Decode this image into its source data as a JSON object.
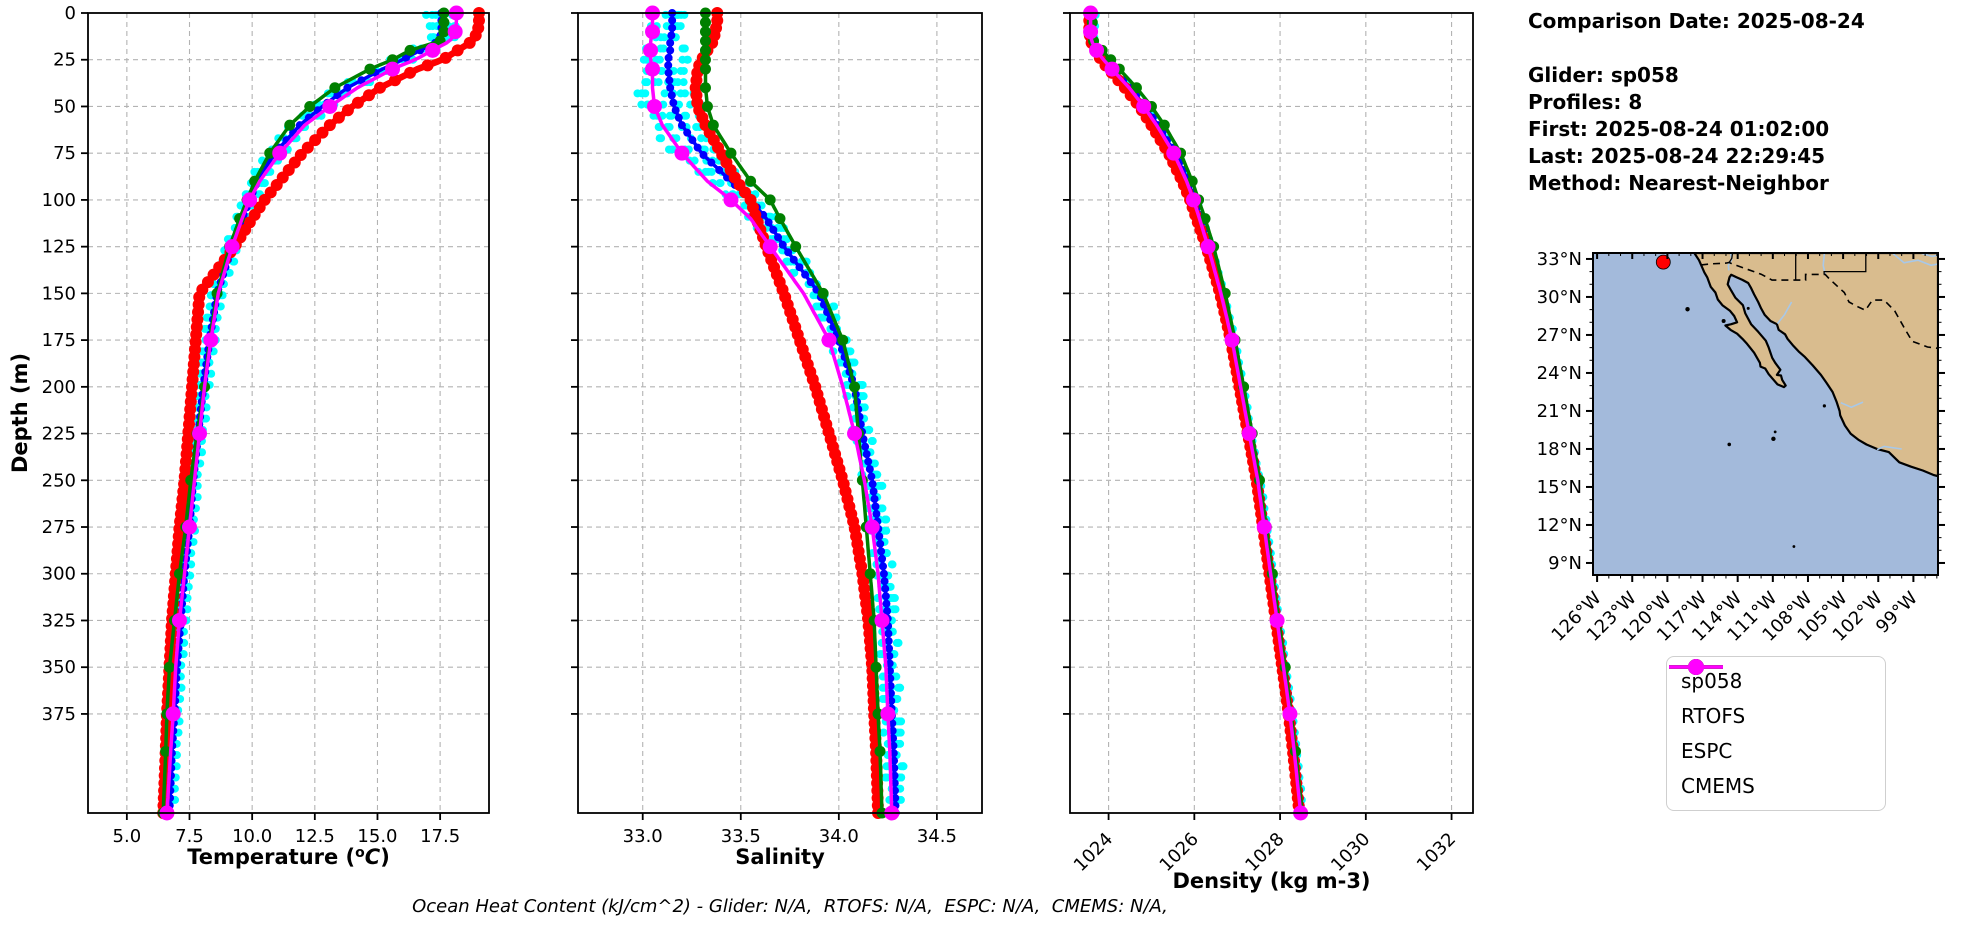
{
  "info_panel": {
    "comparison_date": "Comparison Date: 2025-08-24",
    "lines": [
      "Glider: sp058",
      "Profiles: 8",
      "First: 2025-08-24 01:02:00",
      "Last: 2025-08-24 22:29:45",
      "Method: Nearest-Neighbor"
    ]
  },
  "caption": "Ocean Heat Content (kJ/cm^2) - Glider: N/A,  RTOFS: N/A,  ESPC: N/A,  CMEMS: N/A,",
  "legend": {
    "items": [
      {
        "label": "sp058",
        "color": "#0000ff"
      },
      {
        "label": "RTOFS",
        "color": "#ff0000"
      },
      {
        "label": "ESPC",
        "color": "#008000"
      },
      {
        "label": "CMEMS",
        "color": "#ff00ff"
      }
    ]
  },
  "map": {
    "ocean_color": "#a3badb",
    "land_color": "#d9bc8e",
    "coast_color": "#000000",
    "river_color": "#a8c8e8",
    "lat_ticks": [
      33,
      30,
      27,
      24,
      21,
      18,
      15,
      12,
      9
    ],
    "lat_tick_labels": [
      "33°N",
      "30°N",
      "27°N",
      "24°N",
      "21°N",
      "18°N",
      "15°N",
      "12°N",
      "9°N"
    ],
    "lon_ticks": [
      -126,
      -123,
      -120,
      -117,
      -114,
      -111,
      -108,
      -105,
      -102,
      -99
    ],
    "lon_tick_labels": [
      "126°W",
      "123°W",
      "120°W",
      "117°W",
      "114°W",
      "111°W",
      "108°W",
      "105°W",
      "102°W",
      "99°W"
    ],
    "glider_marker": {
      "color": "#ff0000",
      "lon": -120.35,
      "lat": 32.75
    }
  },
  "glider_scatter": {
    "name": "sp058 raw profiles",
    "color": "#00ffff",
    "profiles": 8,
    "jitter": {
      "temperature": 0.45,
      "salinity": 0.09,
      "density": 0.05
    }
  },
  "chart_data": [
    {
      "id": "temperature",
      "type": "line",
      "xlabel": {
        "prefix": "Temperature (",
        "superscript": "o",
        "italic": "C",
        "suffix": ")"
      },
      "ylabel": "Depth (m)",
      "xlim": [
        3.45,
        19.45
      ],
      "ylim": [
        0,
        428
      ],
      "xticks": [
        5.0,
        7.5,
        10.0,
        12.5,
        15.0,
        17.5
      ],
      "xtick_labels": [
        "5.0",
        "7.5",
        "10.0",
        "12.5",
        "15.0",
        "17.5"
      ],
      "yticks": [
        0,
        25,
        50,
        75,
        100,
        125,
        150,
        175,
        200,
        225,
        250,
        275,
        300,
        325,
        350,
        375
      ],
      "depths": [
        0,
        5,
        10,
        15,
        20,
        25,
        30,
        40,
        50,
        60,
        75,
        90,
        100,
        110,
        125,
        150,
        175,
        200,
        225,
        250,
        275,
        300,
        325,
        350,
        375,
        395,
        428
      ],
      "series": [
        {
          "name": "sp058",
          "color": "#0000ff",
          "values": [
            17.55,
            17.55,
            17.55,
            17.45,
            16.7,
            16.0,
            15.2,
            13.8,
            12.8,
            11.9,
            10.9,
            10.2,
            9.9,
            9.6,
            9.2,
            8.6,
            8.3,
            8.05,
            7.85,
            7.65,
            7.5,
            7.3,
            7.15,
            7.0,
            6.9,
            6.8,
            6.7
          ]
        },
        {
          "name": "RTOFS",
          "color": "#ff0000",
          "values": [
            19.05,
            19.05,
            19.0,
            18.8,
            18.2,
            17.6,
            16.6,
            15.1,
            14.0,
            13.1,
            12.0,
            11.1,
            10.5,
            10.0,
            9.3,
            7.9,
            7.75,
            7.6,
            7.45,
            7.3,
            7.1,
            6.95,
            6.8,
            6.7,
            6.6,
            6.55,
            6.45
          ]
        },
        {
          "name": "ESPC",
          "color": "#008000",
          "values": [
            17.65,
            17.65,
            17.65,
            17.5,
            16.3,
            15.6,
            14.7,
            13.3,
            12.3,
            11.5,
            10.7,
            10.1,
            9.8,
            9.5,
            9.1,
            8.6,
            8.3,
            8.1,
            7.8,
            7.55,
            7.35,
            7.1,
            6.9,
            6.7,
            6.6,
            6.55,
            6.45
          ]
        },
        {
          "name": "CMEMS",
          "color": "#ff00ff",
          "values": [
            18.15,
            18.15,
            18.1,
            17.9,
            17.2,
            16.5,
            15.6,
            14.2,
            13.1,
            12.1,
            11.1,
            10.3,
            9.9,
            9.6,
            9.2,
            8.65,
            8.35,
            8.1,
            7.9,
            7.7,
            7.5,
            7.3,
            7.1,
            6.95,
            6.85,
            6.75,
            6.6
          ]
        }
      ]
    },
    {
      "id": "salinity",
      "type": "line",
      "xlabel": {
        "prefix": "Salinity"
      },
      "xlim": [
        32.67,
        34.73
      ],
      "ylim": [
        0,
        428
      ],
      "xticks": [
        33.0,
        33.5,
        34.0,
        34.5
      ],
      "xtick_labels": [
        "33.0",
        "33.5",
        "34.0",
        "34.5"
      ],
      "yticks": [
        0,
        25,
        50,
        75,
        100,
        125,
        150,
        175,
        200,
        225,
        250,
        275,
        300,
        325,
        350,
        375
      ],
      "depths": [
        0,
        5,
        10,
        15,
        20,
        25,
        30,
        40,
        50,
        60,
        75,
        90,
        100,
        110,
        125,
        150,
        175,
        200,
        225,
        250,
        275,
        300,
        325,
        350,
        375,
        395,
        428
      ],
      "series": [
        {
          "name": "sp058",
          "color": "#0000ff",
          "values": [
            33.15,
            33.15,
            33.15,
            33.14,
            33.14,
            33.13,
            33.13,
            33.14,
            33.16,
            33.2,
            33.3,
            33.45,
            33.55,
            33.63,
            33.72,
            33.9,
            34.0,
            34.08,
            34.12,
            34.17,
            34.2,
            34.23,
            34.25,
            34.26,
            34.27,
            34.28,
            34.29
          ]
        },
        {
          "name": "RTOFS",
          "color": "#ff0000",
          "values": [
            33.38,
            33.38,
            33.37,
            33.36,
            33.33,
            33.3,
            33.28,
            33.27,
            33.28,
            33.32,
            33.4,
            33.48,
            33.55,
            33.58,
            33.63,
            33.72,
            33.8,
            33.88,
            33.95,
            34.02,
            34.08,
            34.12,
            34.15,
            34.17,
            34.18,
            34.19,
            34.2
          ]
        },
        {
          "name": "ESPC",
          "color": "#008000",
          "values": [
            33.32,
            33.32,
            33.32,
            33.32,
            33.32,
            33.32,
            33.32,
            33.32,
            33.33,
            33.36,
            33.45,
            33.55,
            33.65,
            33.7,
            33.78,
            33.92,
            34.02,
            34.08,
            34.1,
            34.12,
            34.14,
            34.16,
            34.18,
            34.19,
            34.2,
            34.21,
            34.22
          ]
        },
        {
          "name": "CMEMS",
          "color": "#ff00ff",
          "values": [
            33.05,
            33.05,
            33.05,
            33.04,
            33.04,
            33.04,
            33.05,
            33.05,
            33.06,
            33.1,
            33.2,
            33.33,
            33.45,
            33.55,
            33.65,
            33.82,
            33.95,
            34.02,
            34.08,
            34.13,
            34.17,
            34.2,
            34.22,
            34.24,
            34.25,
            34.26,
            34.27
          ]
        }
      ]
    },
    {
      "id": "density",
      "type": "line",
      "xlabel": {
        "prefix": "Density (kg m-3)"
      },
      "xlim": [
        1023.1,
        1032.5
      ],
      "ylim": [
        0,
        428
      ],
      "xticks": [
        1024,
        1026,
        1028,
        1030,
        1032
      ],
      "xtick_labels": [
        "1024",
        "1026",
        "1028",
        "1030",
        "1032"
      ],
      "xtick_rotation": -45,
      "yticks": [
        0,
        25,
        50,
        75,
        100,
        125,
        150,
        175,
        200,
        225,
        250,
        275,
        300,
        325,
        350,
        375
      ],
      "depths": [
        0,
        5,
        10,
        15,
        20,
        25,
        30,
        40,
        50,
        60,
        75,
        90,
        100,
        110,
        125,
        150,
        175,
        200,
        225,
        250,
        275,
        300,
        325,
        350,
        375,
        395,
        428
      ],
      "series": [
        {
          "name": "sp058",
          "color": "#0000ff",
          "values": [
            1023.6,
            1023.6,
            1023.6,
            1023.62,
            1023.75,
            1023.9,
            1024.1,
            1024.5,
            1024.85,
            1025.15,
            1025.55,
            1025.85,
            1026.0,
            1026.15,
            1026.35,
            1026.65,
            1026.9,
            1027.1,
            1027.3,
            1027.5,
            1027.65,
            1027.8,
            1027.95,
            1028.1,
            1028.25,
            1028.35,
            1028.5
          ]
        },
        {
          "name": "RTOFS",
          "color": "#ff0000",
          "values": [
            1023.55,
            1023.55,
            1023.55,
            1023.58,
            1023.7,
            1023.82,
            1024.0,
            1024.38,
            1024.72,
            1025.0,
            1025.4,
            1025.72,
            1025.9,
            1026.05,
            1026.28,
            1026.6,
            1026.85,
            1027.05,
            1027.25,
            1027.45,
            1027.6,
            1027.75,
            1027.9,
            1028.05,
            1028.2,
            1028.3,
            1028.45
          ]
        },
        {
          "name": "ESPC",
          "color": "#008000",
          "values": [
            1023.62,
            1023.62,
            1023.62,
            1023.65,
            1023.85,
            1024.05,
            1024.25,
            1024.65,
            1025.0,
            1025.3,
            1025.68,
            1025.95,
            1026.1,
            1026.25,
            1026.45,
            1026.72,
            1026.95,
            1027.15,
            1027.35,
            1027.52,
            1027.68,
            1027.82,
            1027.97,
            1028.12,
            1028.26,
            1028.36,
            1028.52
          ]
        },
        {
          "name": "CMEMS",
          "color": "#ff00ff",
          "values": [
            1023.58,
            1023.58,
            1023.58,
            1023.6,
            1023.72,
            1023.88,
            1024.08,
            1024.48,
            1024.82,
            1025.12,
            1025.52,
            1025.82,
            1025.98,
            1026.12,
            1026.32,
            1026.62,
            1026.88,
            1027.08,
            1027.28,
            1027.48,
            1027.63,
            1027.78,
            1027.93,
            1028.08,
            1028.23,
            1028.33,
            1028.48
          ]
        }
      ]
    }
  ]
}
